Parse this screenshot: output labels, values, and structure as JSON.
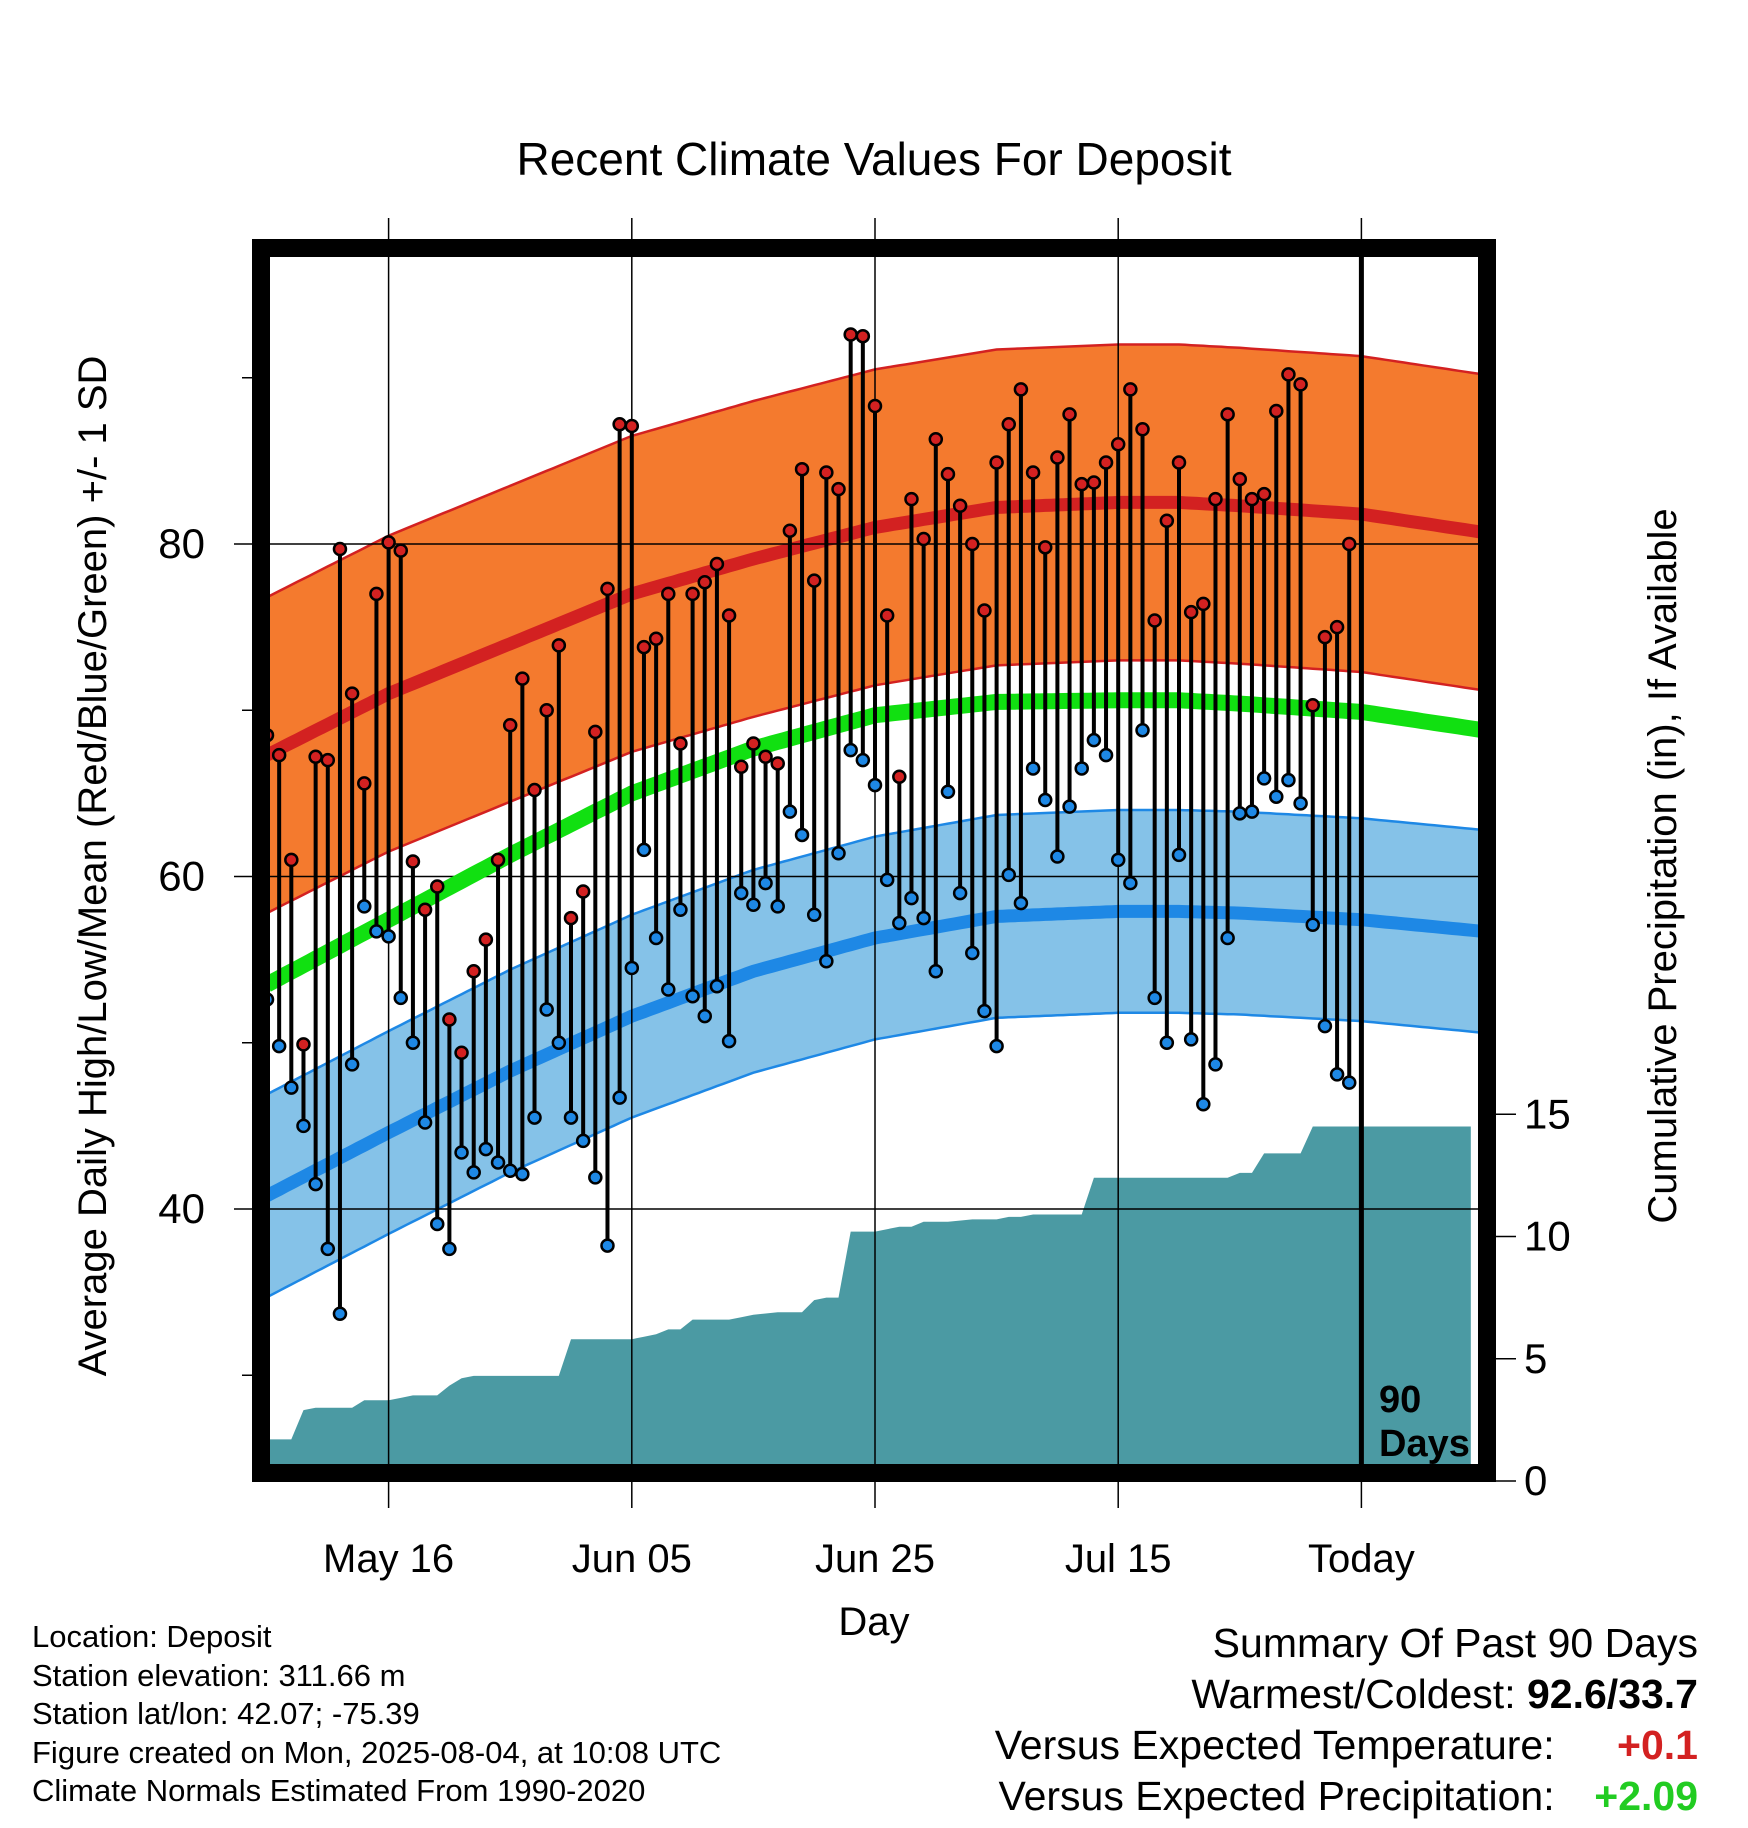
{
  "chart_data": {
    "type": "line",
    "title": "Recent Climate Values For Deposit",
    "xlabel": "Day",
    "ylabel_left": "Average Daily High/Low/Mean (Red/Blue/Green) +/- 1 SD",
    "ylabel_right": "Cumulative Precipitation (in), If Available",
    "x_ticks": [
      "May 16",
      "Jun 05",
      "Jun 25",
      "Jul 15",
      "Today"
    ],
    "x_tick_days": [
      10,
      30,
      50,
      70,
      90
    ],
    "y_ticks_left": [
      "40",
      "60",
      "80"
    ],
    "y_ticks_right": [
      "0",
      "5",
      "10",
      "15"
    ],
    "xlim": [
      0,
      100
    ],
    "ylim_left": [
      23,
      98
    ],
    "ylim_right": [
      0,
      50
    ],
    "today_label": "90 Days",
    "normals": {
      "days": [
        0,
        10,
        20,
        30,
        40,
        50,
        60,
        70,
        75,
        80,
        90,
        100
      ],
      "high_mean": [
        67.3,
        71.0,
        74.0,
        77.0,
        79.1,
        81.0,
        82.2,
        82.5,
        82.5,
        82.3,
        81.8,
        80.7
      ],
      "high_sd": 9.5,
      "mean": [
        53.5,
        57.4,
        61.3,
        65.0,
        67.7,
        69.7,
        70.5,
        70.6,
        70.6,
        70.4,
        69.9,
        68.8
      ],
      "low_mean": [
        40.8,
        44.6,
        48.3,
        51.6,
        54.3,
        56.3,
        57.6,
        57.9,
        57.9,
        57.8,
        57.4,
        56.7
      ],
      "low_sd": 6.1
    },
    "series": [
      {
        "name": "High",
        "color": "#d32121",
        "values": [
          68.5,
          67.3,
          61.0,
          49.9,
          67.2,
          67.0,
          79.7,
          71.0,
          65.6,
          77.0,
          80.1,
          79.6,
          60.9,
          58.0,
          59.4,
          51.4,
          49.4,
          54.3,
          56.2,
          61.0,
          69.1,
          71.9,
          65.2,
          70.0,
          73.9,
          57.5,
          59.1,
          68.7,
          77.3,
          87.2,
          87.1,
          73.8,
          74.3,
          77.0,
          68.0,
          77.0,
          77.7,
          78.8,
          75.7,
          66.6,
          68.0,
          67.2,
          66.8,
          80.8,
          84.5,
          77.8,
          84.3,
          83.3,
          92.6,
          92.5,
          88.3,
          75.7,
          66.0,
          82.7,
          80.3,
          86.3,
          84.2,
          82.3,
          80.0,
          76.0,
          84.9,
          87.2,
          89.3,
          84.3,
          79.8,
          85.2,
          87.8,
          83.6,
          83.7,
          84.9,
          86.0,
          89.3,
          86.9,
          75.4,
          81.4,
          84.9,
          75.9,
          76.4,
          82.7,
          87.8,
          83.9,
          82.7,
          83.0,
          88.0,
          90.2,
          89.6,
          70.3,
          74.4,
          75.0,
          80.0
        ],
        "lows": [
          52.6,
          49.8,
          47.3,
          45.0,
          41.5,
          37.6,
          33.7,
          48.7,
          58.2,
          56.7,
          56.4,
          52.7,
          50.0,
          45.2,
          39.1,
          37.6,
          43.4,
          42.2,
          43.6,
          42.8,
          42.3,
          42.1,
          45.5,
          52.0,
          50.0,
          45.5,
          44.1,
          41.9,
          37.8,
          46.7,
          54.5,
          61.6,
          56.3,
          53.2,
          58.0,
          52.8,
          51.6,
          53.4,
          50.1,
          59.0,
          58.3,
          59.6,
          58.2,
          63.9,
          62.5,
          57.7,
          54.9,
          61.4,
          67.6,
          67.0,
          65.5,
          59.8,
          57.2,
          58.7,
          57.5,
          54.3,
          65.1,
          59.0,
          55.4,
          51.9,
          49.8,
          60.1,
          58.4,
          66.5,
          64.6,
          61.2,
          64.2,
          66.5,
          68.2,
          67.3,
          61.0,
          59.6,
          68.8,
          52.7,
          50.0,
          61.3,
          50.2,
          46.3,
          48.7,
          56.3,
          63.8,
          63.9,
          65.9,
          64.8,
          65.8,
          64.4,
          57.1,
          51.0,
          48.1,
          47.6
        ]
      },
      {
        "name": "Low",
        "color": "#1e88e5",
        "values": []
      }
    ],
    "precip": {
      "name": "Cumulative Precipitation",
      "color": "#4b9aa3",
      "days": [
        0,
        2,
        3,
        4,
        7,
        8,
        10,
        11,
        12,
        13,
        14,
        15,
        16,
        17,
        18,
        24,
        25,
        26,
        27,
        28,
        30,
        31,
        32,
        33,
        34,
        35,
        36,
        38,
        39,
        40,
        42,
        43,
        44,
        45,
        46,
        47,
        48,
        49,
        50,
        52,
        53,
        54,
        56,
        58,
        60,
        61,
        62,
        63,
        67,
        68,
        69,
        70,
        71,
        72,
        79,
        80,
        81,
        82,
        84,
        85,
        86,
        87,
        99
      ],
      "values": [
        1.7,
        1.7,
        2.9,
        3.0,
        3.0,
        3.3,
        3.3,
        3.4,
        3.5,
        3.5,
        3.5,
        3.9,
        4.2,
        4.3,
        4.3,
        4.3,
        5.8,
        5.8,
        5.8,
        5.8,
        5.8,
        5.9,
        6.0,
        6.2,
        6.2,
        6.6,
        6.6,
        6.6,
        6.7,
        6.8,
        6.9,
        6.9,
        6.9,
        7.4,
        7.5,
        7.5,
        10.2,
        10.2,
        10.2,
        10.4,
        10.4,
        10.6,
        10.6,
        10.7,
        10.7,
        10.8,
        10.8,
        10.9,
        10.9,
        12.4,
        12.4,
        12.4,
        12.4,
        12.4,
        12.4,
        12.6,
        12.6,
        13.4,
        13.4,
        13.4,
        14.5,
        14.5,
        14.5
      ]
    }
  },
  "info": {
    "location": "Location: Deposit",
    "elevation": "Station elevation: 311.66 m",
    "latlon": "Station lat/lon: 42.07; -75.39",
    "created": "Figure created on Mon, 2025-08-04, at 10:08 UTC",
    "normals": "Climate Normals Estimated From 1990-2020"
  },
  "summary": {
    "title": "Summary Of Past 90 Days",
    "warm_cold_label": "Warmest/Coldest:",
    "warm_cold_value": "92.6/33.7",
    "temp_label": "Versus Expected Temperature:",
    "temp_value": "+0.1",
    "temp_color": "#d32121",
    "precip_label": "Versus Expected Precipitation:",
    "precip_value": "+2.09",
    "precip_color": "#22cc22"
  },
  "colors": {
    "high_band": "#f47a2e",
    "high_line": "#d32121",
    "mean_line": "#11e011",
    "low_band": "#85c2e8",
    "low_line": "#1e88e5",
    "precip_fill": "#4b9aa3"
  }
}
